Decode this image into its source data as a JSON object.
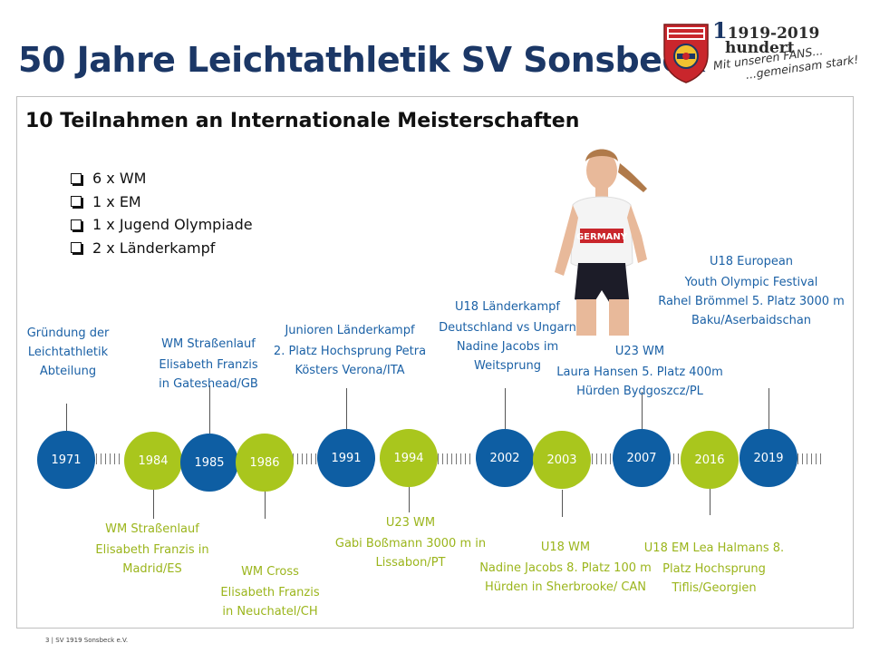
{
  "title": "50 Jahre Leichtathletik SV Sonsbeck",
  "logo": {
    "crest_icon": "sv-sonsbeck-crest-icon",
    "centenary_years": "1919-2019",
    "centenary_word": "hundert",
    "slogan_line1": "Mit unseren FANS...",
    "slogan_line2": "...gemeinsam stark!"
  },
  "subtitle": "10 Teilnahmen an Internationale Meisterschaften",
  "bullets": [
    "6 x WM",
    "1 x EM",
    "1 x Jugend Olympiade",
    "2 x Länderkampf"
  ],
  "timeline": {
    "colors": {
      "blue": "#0e5ea3",
      "green": "#a9c61d"
    },
    "nodes": [
      {
        "year": "1971",
        "color": "blue",
        "position": "above",
        "lines": [
          "Gründung der",
          "Leichtathletik",
          "Abteilung"
        ]
      },
      {
        "year": "1984",
        "color": "green",
        "position": "below",
        "lines": [
          "WM Straßenlauf",
          "Elisabeth Franzis in",
          "Madrid/ES"
        ]
      },
      {
        "year": "1985",
        "color": "blue",
        "position": "above",
        "lines": [
          "WM Straßenlauf",
          "Elisabeth Franzis",
          "in Gateshead/GB"
        ]
      },
      {
        "year": "1986",
        "color": "green",
        "position": "below",
        "lines": [
          "WM Cross",
          "Elisabeth Franzis",
          "in Neuchatel/CH"
        ]
      },
      {
        "year": "1991",
        "color": "blue",
        "position": "above",
        "lines": [
          "Junioren Länderkampf",
          "2. Platz Hochsprung Petra",
          "Kösters Verona/ITA"
        ]
      },
      {
        "year": "1994",
        "color": "green",
        "position": "below",
        "lines": [
          "U23 WM",
          "Gabi  Boßmann  3000 m in",
          "Lissabon/PT"
        ]
      },
      {
        "year": "2002",
        "color": "blue",
        "position": "above",
        "lines": [
          "U18 Länderkampf",
          "Deutschland vs Ungarn",
          "Nadine Jacobs im",
          "Weitsprung"
        ]
      },
      {
        "year": "2003",
        "color": "green",
        "position": "below",
        "lines": [
          "U18 WM",
          "Nadine Jacobs 8. Platz 100 m",
          "Hürden in Sherbrooke/  CAN"
        ]
      },
      {
        "year": "2007",
        "color": "blue",
        "position": "above",
        "lines": [
          "U23 WM",
          "Laura Hansen 5. Platz 400m",
          "Hürden Bydgoszcz/PL"
        ]
      },
      {
        "year": "2016",
        "color": "green",
        "position": "below",
        "lines": [
          "U18 EM Lea Halmans 8.",
          "Platz Hochsprung",
          "Tiflis/Georgien"
        ]
      },
      {
        "year": "2019",
        "color": "blue",
        "position": "above",
        "lines": [
          "U18 European",
          "Youth Olympic Festival",
          "Rahel Brömmel 5. Platz 3000 m",
          "Baku/Aserbaidschan"
        ]
      }
    ]
  },
  "athlete_photo": {
    "shirt_text": "GERMANY"
  },
  "footer": "3 | SV 1919 Sonsbeck e.V."
}
